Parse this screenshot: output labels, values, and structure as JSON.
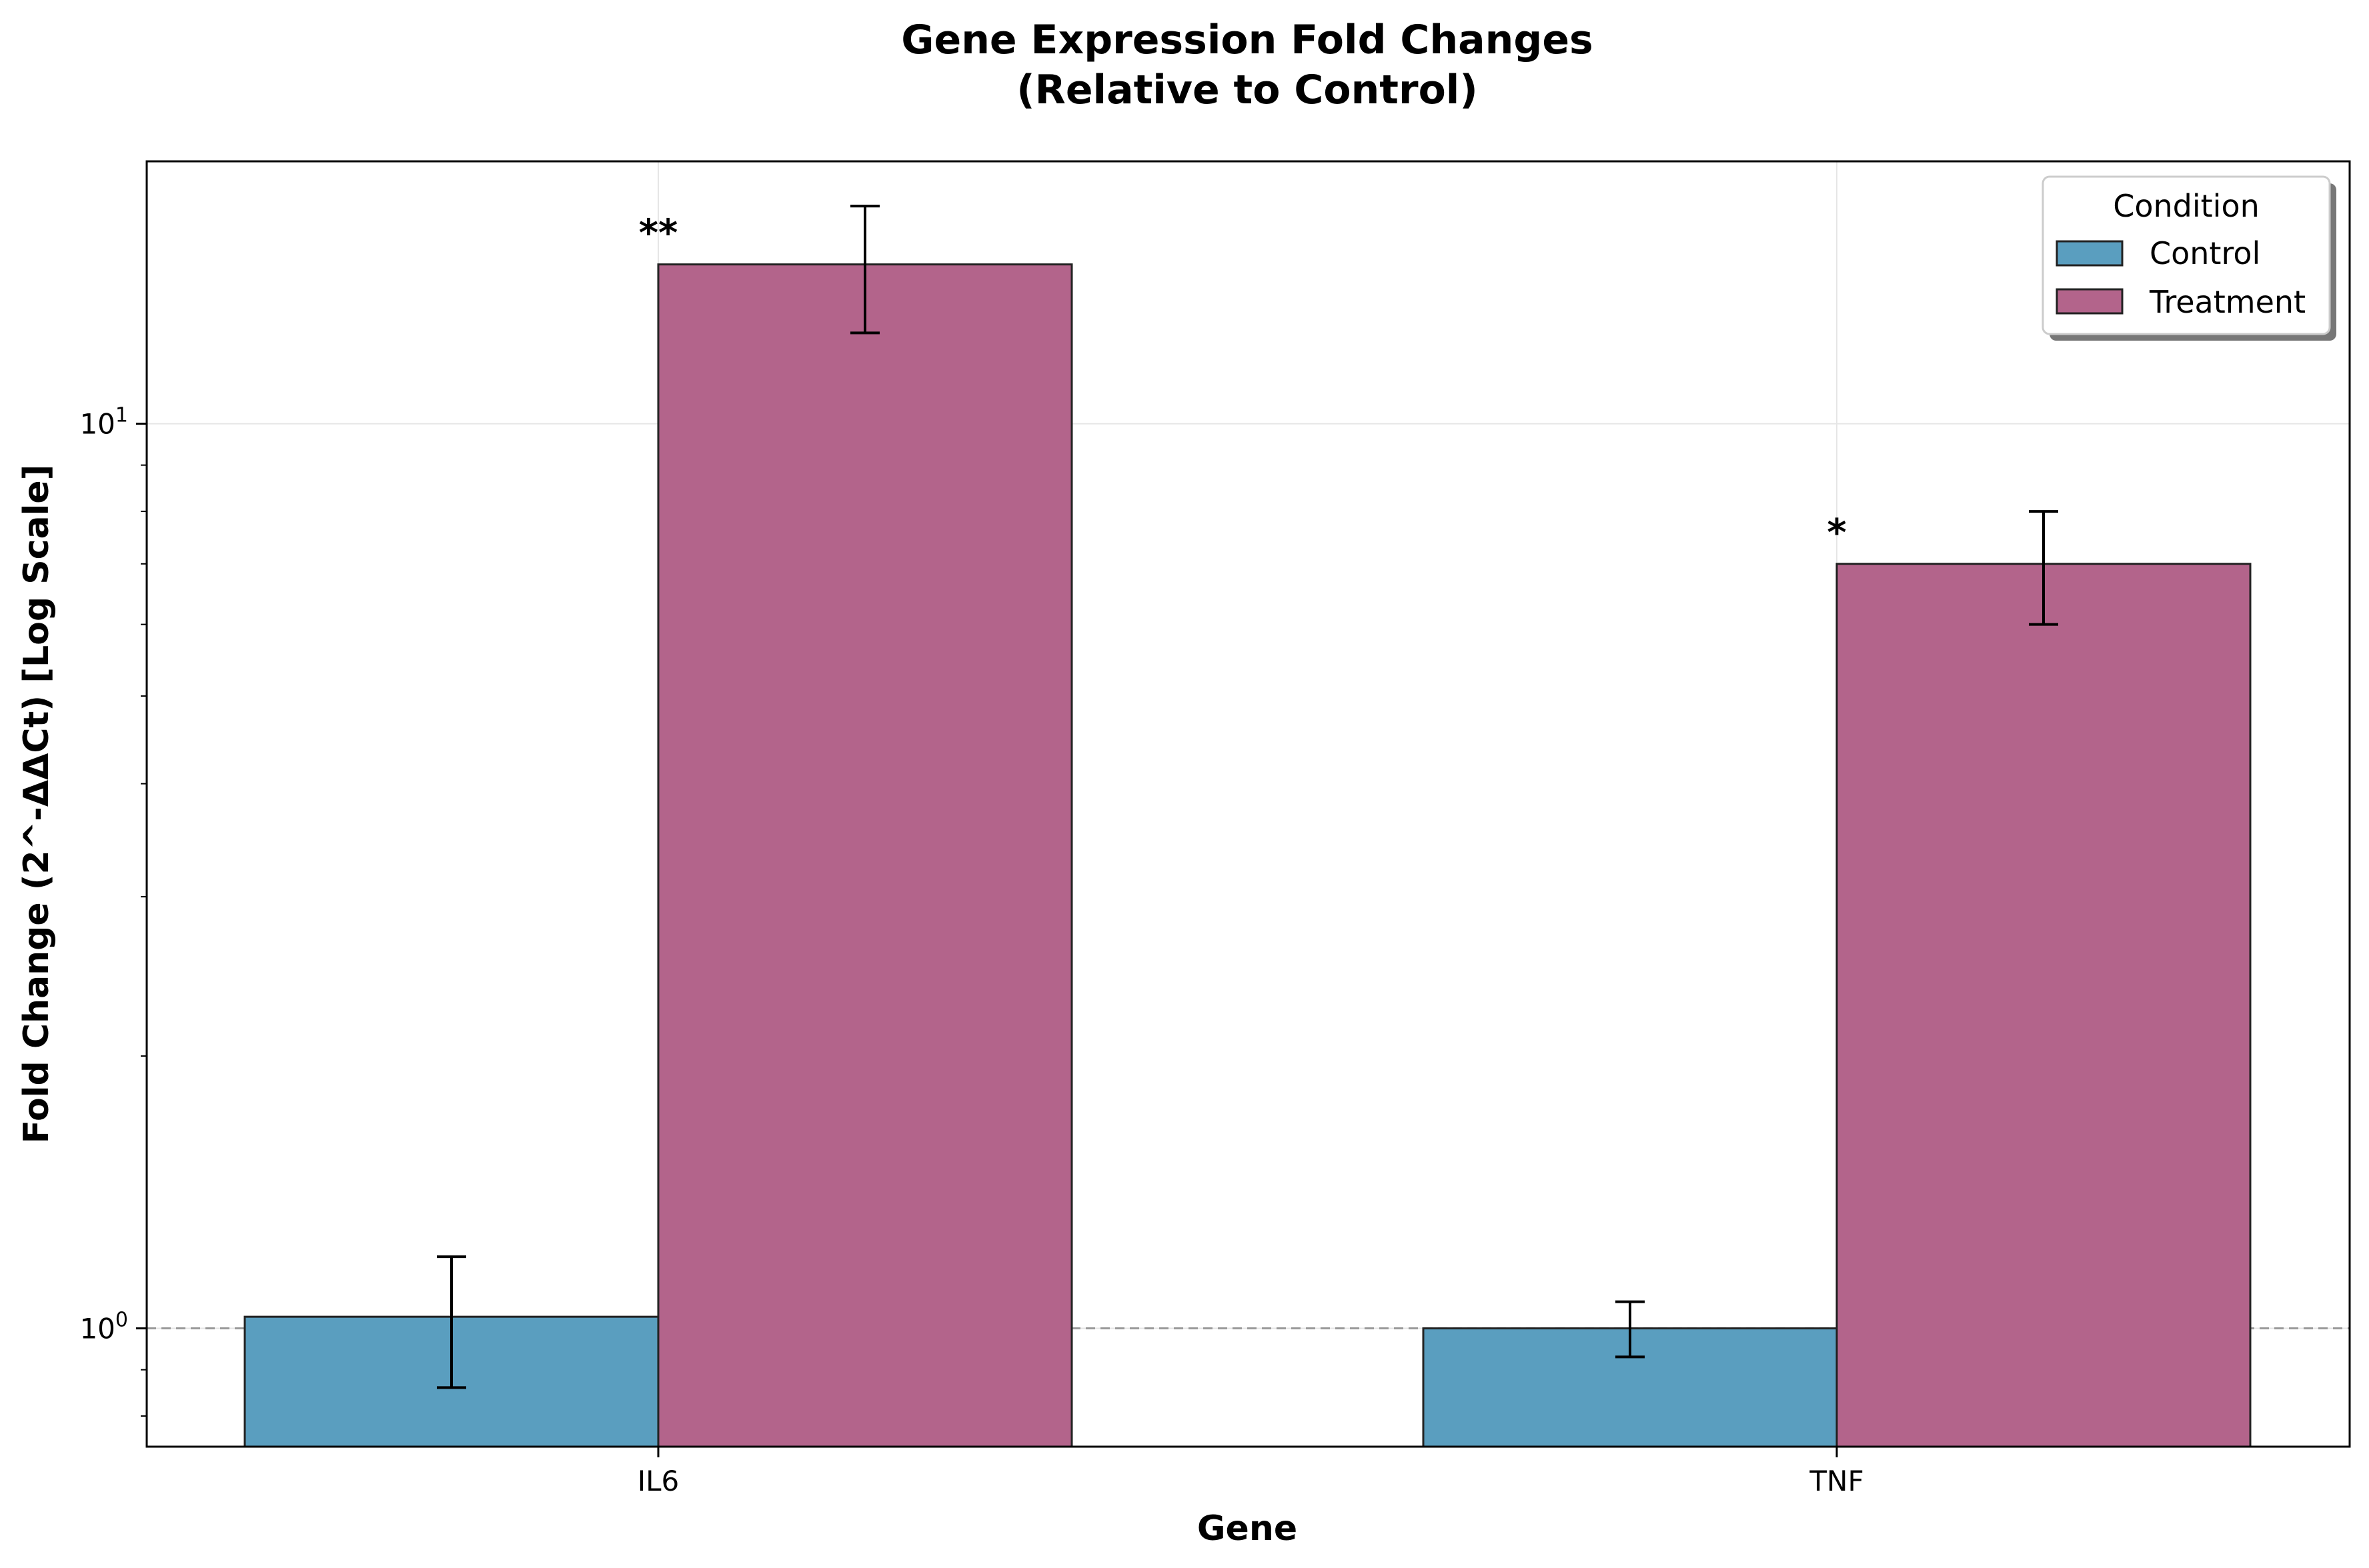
{
  "chart_data": {
    "type": "bar",
    "title_lines": [
      "Gene Expression Fold Changes",
      "(Relative to Control)"
    ],
    "xlabel": "Gene",
    "ylabel": "Fold Change (2^-ΔΔCt) [Log Scale]",
    "yscale": "log",
    "ylim": [
      0.74,
      19.5
    ],
    "categories": [
      "IL6",
      "TNF"
    ],
    "series": [
      {
        "name": "Control",
        "color": "#5a9ebf",
        "values": [
          1.03,
          1.0
        ],
        "errors": [
          0.17,
          0.07
        ]
      },
      {
        "name": "Treatment",
        "color": "#b3648b",
        "values": [
          15.0,
          7.0
        ],
        "errors": [
          2.4,
          1.0
        ]
      }
    ],
    "significance": [
      {
        "category": "IL6",
        "label": "**"
      },
      {
        "category": "TNF",
        "label": "*"
      }
    ],
    "y_tick_labels": [
      {
        "value": 1,
        "base": "10",
        "exp": "0"
      },
      {
        "value": 10,
        "base": "10",
        "exp": "1"
      }
    ],
    "reference_line": 1.0,
    "grid": true,
    "legend_title": "Condition",
    "legend_position": "top-right"
  }
}
